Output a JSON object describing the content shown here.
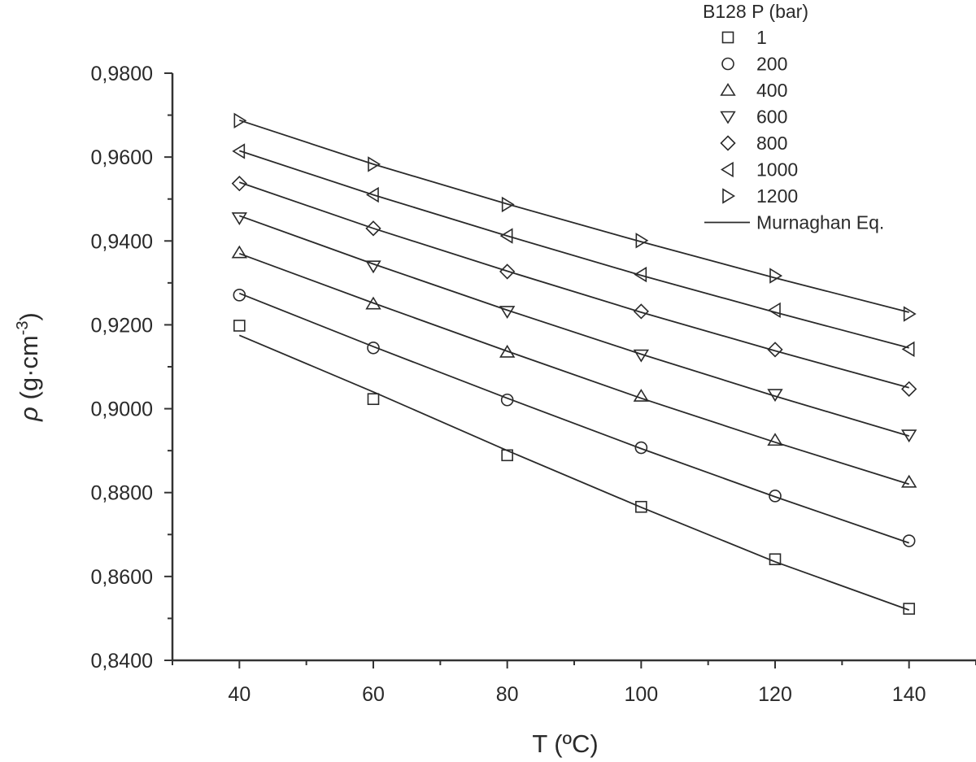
{
  "chart_data": {
    "type": "scatter",
    "title": "",
    "xlabel": "T (ºC)",
    "ylabel_symbol": "ρ",
    "ylabel_text": " (g·cm",
    "ylabel_sup": "-3",
    "ylabel_close": ")",
    "xlim": [
      30,
      150
    ],
    "ylim": [
      0.84,
      0.98
    ],
    "x_ticks": [
      40,
      60,
      80,
      100,
      120,
      140
    ],
    "x_tick_labels": [
      "40",
      "60",
      "80",
      "100",
      "120",
      "140"
    ],
    "y_ticks": [
      0.84,
      0.86,
      0.88,
      0.9,
      0.92,
      0.94,
      0.96,
      0.98
    ],
    "y_tick_labels": [
      "0,8400",
      "0,8600",
      "0,8800",
      "0,9000",
      "0,9200",
      "0,9400",
      "0,9600",
      "0,9800"
    ],
    "x": [
      40,
      60,
      80,
      100,
      120,
      140
    ],
    "legend_title": "B128 P (bar)",
    "legend_position": "top-right",
    "fit_label": "Murnaghan Eq.",
    "series": [
      {
        "name": "1",
        "marker": "square",
        "values": [
          0.9198,
          0.9023,
          0.8889,
          0.8766,
          0.8641,
          0.8523
        ],
        "fit": [
          0.9175,
          0.904,
          0.89,
          0.8765,
          0.8635,
          0.852
        ]
      },
      {
        "name": "200",
        "marker": "circle",
        "values": [
          0.9271,
          0.9145,
          0.9021,
          0.8907,
          0.8792,
          0.8685
        ],
        "fit": [
          0.9275,
          0.9148,
          0.9025,
          0.8905,
          0.879,
          0.868
        ]
      },
      {
        "name": "400",
        "marker": "triangle-up",
        "values": [
          0.9372,
          0.925,
          0.9135,
          0.903,
          0.8925,
          0.8825
        ],
        "fit": [
          0.937,
          0.9252,
          0.9137,
          0.9025,
          0.892,
          0.882
        ]
      },
      {
        "name": "600",
        "marker": "triangle-down",
        "values": [
          0.9455,
          0.934,
          0.9232,
          0.9128,
          0.9034,
          0.8937
        ],
        "fit": [
          0.946,
          0.9345,
          0.9235,
          0.913,
          0.903,
          0.8935
        ]
      },
      {
        "name": "800",
        "marker": "diamond",
        "values": [
          0.9537,
          0.943,
          0.9327,
          0.9232,
          0.9141,
          0.9047
        ],
        "fit": [
          0.954,
          0.943,
          0.9328,
          0.923,
          0.9138,
          0.905
        ]
      },
      {
        "name": "1000",
        "marker": "triangle-left",
        "values": [
          0.9614,
          0.951,
          0.9412,
          0.932,
          0.9235,
          0.9142
        ],
        "fit": [
          0.9615,
          0.951,
          0.9412,
          0.9318,
          0.923,
          0.9145
        ]
      },
      {
        "name": "1200",
        "marker": "triangle-right",
        "values": [
          0.9687,
          0.9583,
          0.9487,
          0.9401,
          0.9317,
          0.9226
        ],
        "fit": [
          0.9688,
          0.9583,
          0.9488,
          0.9398,
          0.9312,
          0.923
        ]
      }
    ]
  }
}
